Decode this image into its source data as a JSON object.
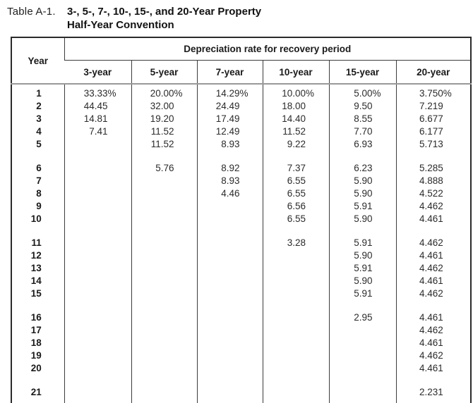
{
  "title": {
    "label": "Table A-1.",
    "line1": "3-, 5-, 7-, 10-, 15-, and 20-Year Property",
    "line2": "Half-Year Convention"
  },
  "table": {
    "year_header": "Year",
    "span_header": "Depreciation rate for recovery period",
    "columns": [
      "3-year",
      "5-year",
      "7-year",
      "10-year",
      "15-year",
      "20-year"
    ],
    "gap_after_years": [
      5,
      10,
      15,
      20
    ],
    "rows": [
      {
        "year": "1",
        "values": [
          "33.33%",
          "20.00%",
          "14.29%",
          "10.00%",
          "5.00%",
          "3.750%"
        ]
      },
      {
        "year": "2",
        "values": [
          "44.45",
          "32.00",
          "24.49",
          "18.00",
          "9.50",
          "7.219"
        ]
      },
      {
        "year": "3",
        "values": [
          "14.81",
          "19.20",
          "17.49",
          "14.40",
          "8.55",
          "6.677"
        ]
      },
      {
        "year": "4",
        "values": [
          "7.41",
          "11.52",
          "12.49",
          "11.52",
          "7.70",
          "6.177"
        ]
      },
      {
        "year": "5",
        "values": [
          "",
          "11.52",
          "8.93",
          "9.22",
          "6.93",
          "5.713"
        ]
      },
      {
        "year": "6",
        "values": [
          "",
          "5.76",
          "8.92",
          "7.37",
          "6.23",
          "5.285"
        ]
      },
      {
        "year": "7",
        "values": [
          "",
          "",
          "8.93",
          "6.55",
          "5.90",
          "4.888"
        ]
      },
      {
        "year": "8",
        "values": [
          "",
          "",
          "4.46",
          "6.55",
          "5.90",
          "4.522"
        ]
      },
      {
        "year": "9",
        "values": [
          "",
          "",
          "",
          "6.56",
          "5.91",
          "4.462"
        ]
      },
      {
        "year": "10",
        "values": [
          "",
          "",
          "",
          "6.55",
          "5.90",
          "4.461"
        ]
      },
      {
        "year": "11",
        "values": [
          "",
          "",
          "",
          "3.28",
          "5.91",
          "4.462"
        ]
      },
      {
        "year": "12",
        "values": [
          "",
          "",
          "",
          "",
          "5.90",
          "4.461"
        ]
      },
      {
        "year": "13",
        "values": [
          "",
          "",
          "",
          "",
          "5.91",
          "4.462"
        ]
      },
      {
        "year": "14",
        "values": [
          "",
          "",
          "",
          "",
          "5.90",
          "4.461"
        ]
      },
      {
        "year": "15",
        "values": [
          "",
          "",
          "",
          "",
          "5.91",
          "4.462"
        ]
      },
      {
        "year": "16",
        "values": [
          "",
          "",
          "",
          "",
          "2.95",
          "4.461"
        ]
      },
      {
        "year": "17",
        "values": [
          "",
          "",
          "",
          "",
          "",
          "4.462"
        ]
      },
      {
        "year": "18",
        "values": [
          "",
          "",
          "",
          "",
          "",
          "4.461"
        ]
      },
      {
        "year": "19",
        "values": [
          "",
          "",
          "",
          "",
          "",
          "4.462"
        ]
      },
      {
        "year": "20",
        "values": [
          "",
          "",
          "",
          "",
          "",
          "4.461"
        ]
      },
      {
        "year": "21",
        "values": [
          "",
          "",
          "",
          "",
          "",
          "2.231"
        ]
      }
    ]
  }
}
